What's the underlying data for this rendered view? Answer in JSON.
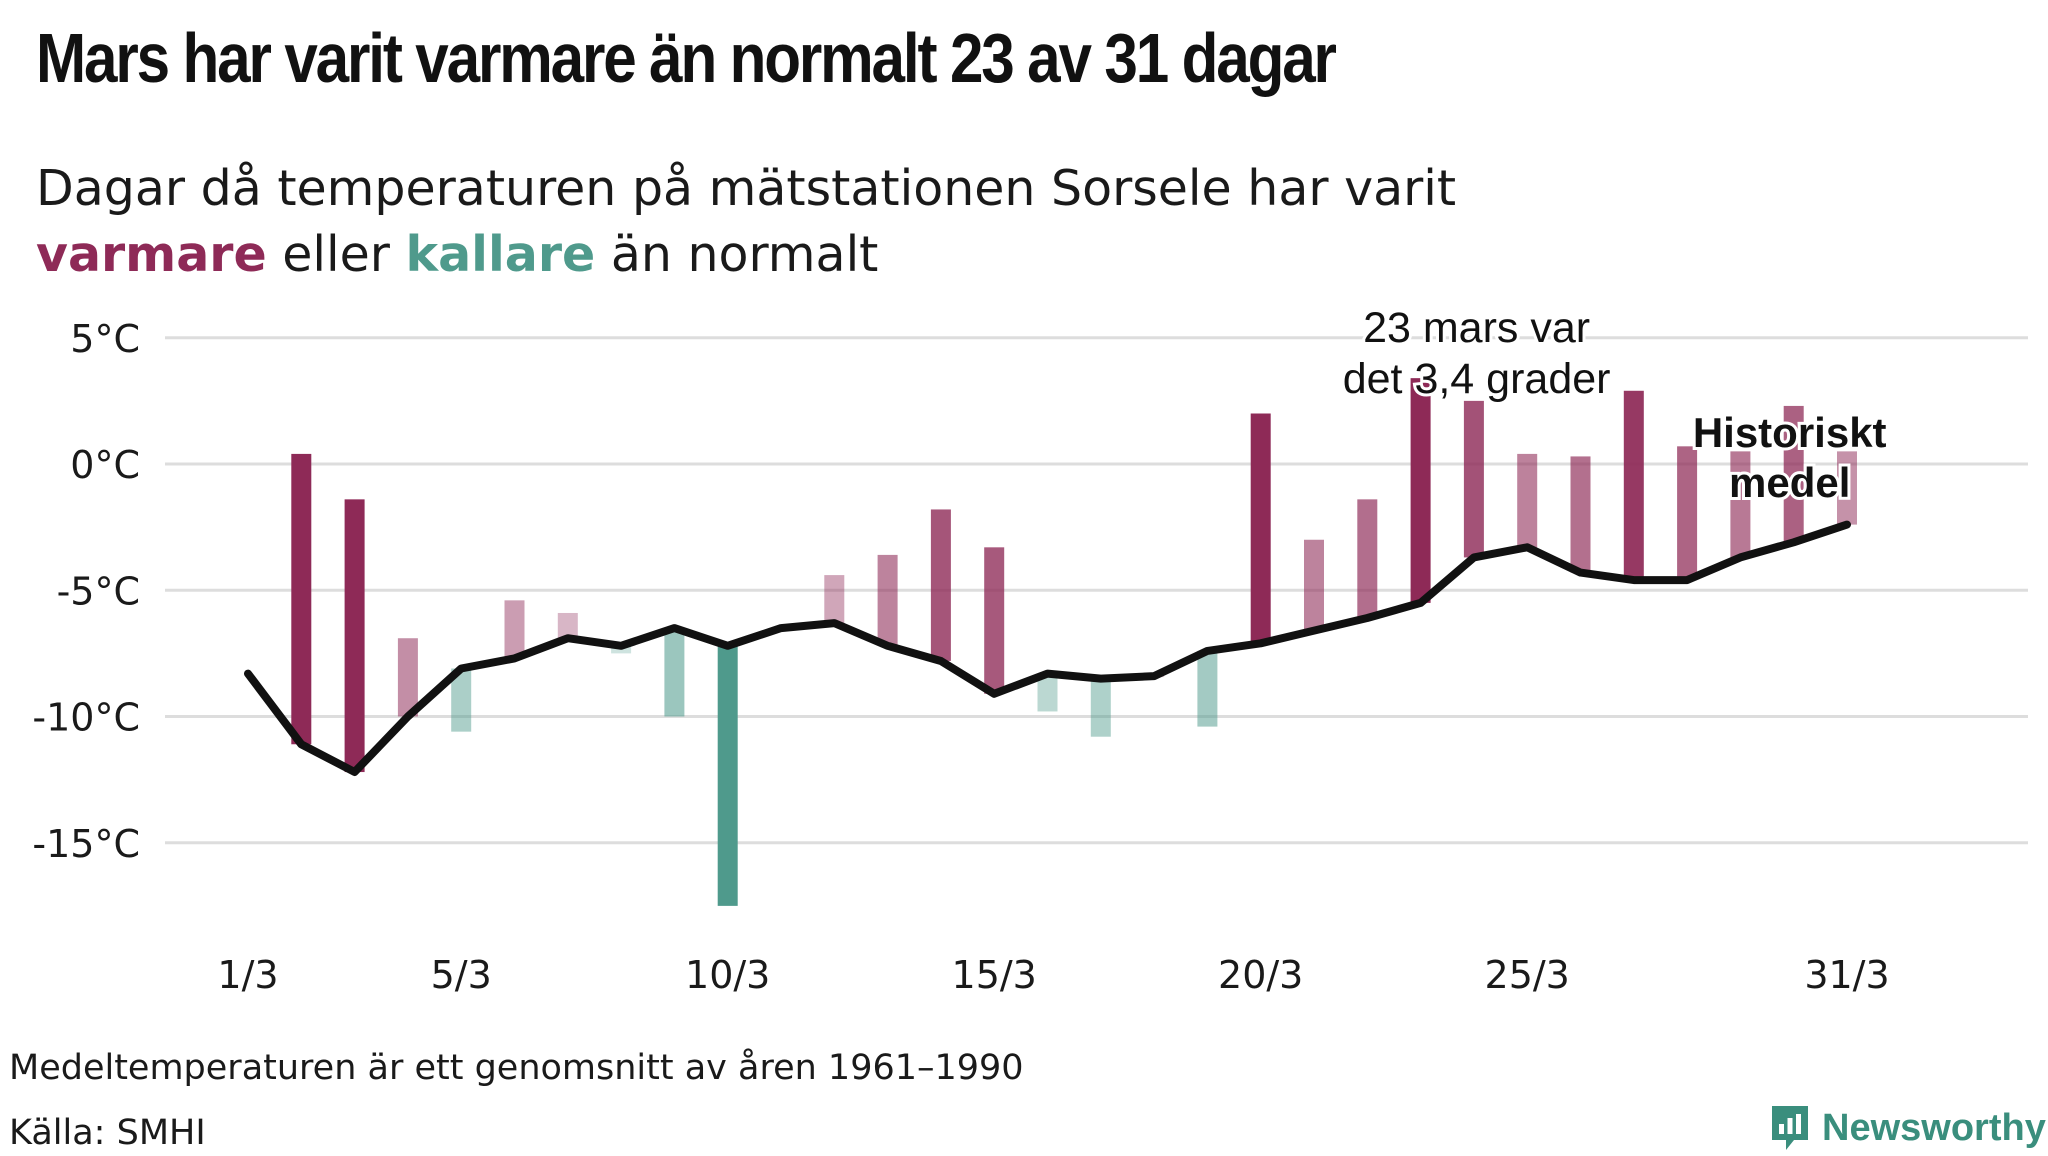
{
  "title": "Mars har varit varmare än normalt 23 av 31 dagar",
  "subtitle": {
    "line1": "Dagar då temperaturen på mätstationen Sorsele har varit",
    "warmer": "varmare",
    "or": "eller",
    "colder": "kallare",
    "than_normal": "än normalt"
  },
  "footnote": "Medeltemperaturen är ett genomsnitt av åren 1961–1990",
  "source": "Källa: SMHI",
  "brand": {
    "name": "Newsworthy",
    "icon": "newsworthy-logo-icon"
  },
  "colors": {
    "warm": "#8e2a57",
    "cold": "#4f9a8c",
    "line": "#111111",
    "grid": "#dddddd"
  },
  "chart_data": {
    "type": "bar",
    "title": "Mars har varit varmare än normalt 23 av 31 dagar",
    "x": [
      1,
      2,
      3,
      4,
      5,
      6,
      7,
      8,
      9,
      10,
      11,
      12,
      13,
      14,
      15,
      16,
      17,
      18,
      19,
      20,
      21,
      22,
      23,
      24,
      25,
      26,
      27,
      28,
      29,
      30,
      31
    ],
    "x_tick_labels": [
      "1/3",
      "5/3",
      "10/3",
      "15/3",
      "20/3",
      "25/3",
      "31/3"
    ],
    "x_tick_values": [
      1,
      5,
      10,
      15,
      20,
      25,
      31
    ],
    "y_tick_labels": [
      "5°C",
      "0°C",
      "-5°C",
      "-10°C",
      "-15°C"
    ],
    "y_tick_values": [
      5,
      0,
      -5,
      -10,
      -15
    ],
    "ylim": [
      -18,
      6
    ],
    "grid": true,
    "series": [
      {
        "name": "Historiskt medel",
        "type": "line",
        "values": [
          -8.3,
          -11.1,
          -12.2,
          -10.0,
          -8.1,
          -7.7,
          -6.9,
          -7.2,
          -6.5,
          -7.2,
          -6.5,
          -6.3,
          -7.2,
          -7.8,
          -9.1,
          -8.3,
          -8.5,
          -8.4,
          -7.4,
          -7.1,
          -6.6,
          -6.1,
          -5.5,
          -3.7,
          -3.3,
          -4.3,
          -4.6,
          -4.6,
          -3.7,
          -3.1,
          -2.4
        ]
      },
      {
        "name": "Temperatur",
        "type": "bar",
        "values": [
          null,
          0.4,
          -1.4,
          -6.9,
          -10.6,
          -5.4,
          -5.9,
          -7.5,
          -10.0,
          -17.5,
          -6.5,
          -4.4,
          -3.6,
          -1.8,
          -3.3,
          -9.8,
          -10.8,
          -8.4,
          -10.4,
          2.0,
          -3.0,
          -1.4,
          3.4,
          2.5,
          0.4,
          0.3,
          2.9,
          0.7,
          0.5,
          2.3,
          0.5
        ]
      }
    ],
    "annotations": [
      {
        "text_line1": "23 mars var",
        "text_line2": "det 3,4 grader",
        "x": 23,
        "y": 3.4
      },
      {
        "text_line1": "Historiskt",
        "text_line2": "medel",
        "x": 30,
        "y": -1.5
      }
    ]
  }
}
